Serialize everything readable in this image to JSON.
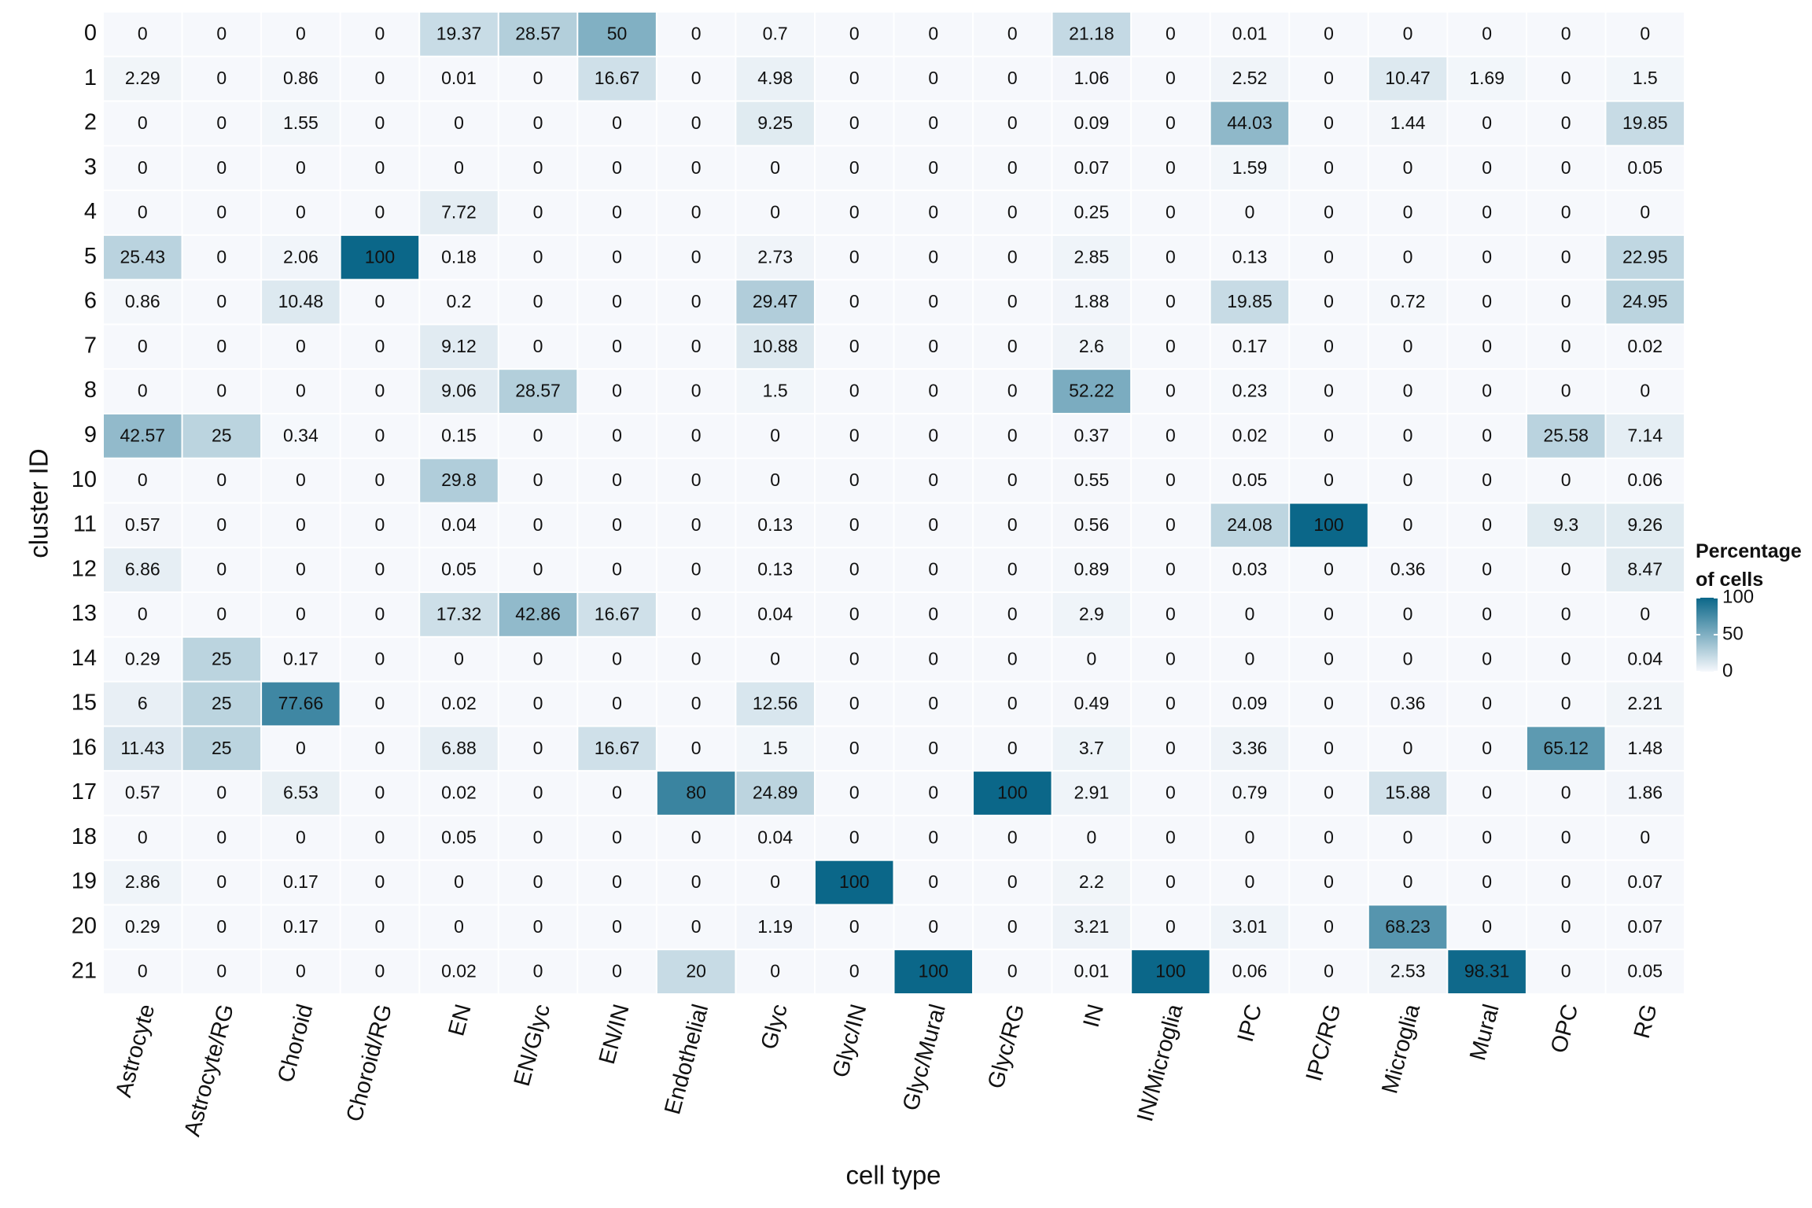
{
  "chart_data": {
    "type": "heatmap",
    "x_label": "cell type",
    "y_label": "cluster ID",
    "legend_title": "Percentage of cells",
    "x_categories": [
      "Astrocyte",
      "Astrocyte/RG",
      "Choroid",
      "Choroid/RG",
      "EN",
      "EN/Glyc",
      "EN/IN",
      "Endothelial",
      "Glyc",
      "Glyc/IN",
      "Glyc/Mural",
      "Glyc/RG",
      "IN",
      "IN/Microglia",
      "IPC",
      "IPC/RG",
      "Microglia",
      "Mural",
      "OPC",
      "RG"
    ],
    "y_categories": [
      "0",
      "1",
      "2",
      "3",
      "4",
      "5",
      "6",
      "7",
      "8",
      "9",
      "10",
      "11",
      "12",
      "13",
      "14",
      "15",
      "16",
      "17",
      "18",
      "19",
      "20",
      "21"
    ],
    "values": [
      [
        0,
        0,
        0,
        0,
        19.37,
        28.57,
        50,
        0,
        0.7,
        0,
        0,
        0,
        21.18,
        0,
        0.01,
        0,
        0,
        0,
        0,
        0
      ],
      [
        2.29,
        0,
        0.86,
        0,
        0.01,
        0,
        16.67,
        0,
        4.98,
        0,
        0,
        0,
        1.06,
        0,
        2.52,
        0,
        10.47,
        1.69,
        0,
        1.5
      ],
      [
        0,
        0,
        1.55,
        0,
        0,
        0,
        0,
        0,
        9.25,
        0,
        0,
        0,
        0.09,
        0,
        44.03,
        0,
        1.44,
        0,
        0,
        19.85
      ],
      [
        0,
        0,
        0,
        0,
        0,
        0,
        0,
        0,
        0,
        0,
        0,
        0,
        0.07,
        0,
        1.59,
        0,
        0,
        0,
        0,
        0.05
      ],
      [
        0,
        0,
        0,
        0,
        7.72,
        0,
        0,
        0,
        0,
        0,
        0,
        0,
        0.25,
        0,
        0,
        0,
        0,
        0,
        0,
        0
      ],
      [
        25.43,
        0,
        2.06,
        100,
        0.18,
        0,
        0,
        0,
        2.73,
        0,
        0,
        0,
        2.85,
        0,
        0.13,
        0,
        0,
        0,
        0,
        22.95
      ],
      [
        0.86,
        0,
        10.48,
        0,
        0.2,
        0,
        0,
        0,
        29.47,
        0,
        0,
        0,
        1.88,
        0,
        19.85,
        0,
        0.72,
        0,
        0,
        24.95
      ],
      [
        0,
        0,
        0,
        0,
        9.12,
        0,
        0,
        0,
        10.88,
        0,
        0,
        0,
        2.6,
        0,
        0.17,
        0,
        0,
        0,
        0,
        0.02
      ],
      [
        0,
        0,
        0,
        0,
        9.06,
        28.57,
        0,
        0,
        1.5,
        0,
        0,
        0,
        52.22,
        0,
        0.23,
        0,
        0,
        0,
        0,
        0
      ],
      [
        42.57,
        25,
        0.34,
        0,
        0.15,
        0,
        0,
        0,
        0,
        0,
        0,
        0,
        0.37,
        0,
        0.02,
        0,
        0,
        0,
        25.58,
        7.14
      ],
      [
        0,
        0,
        0,
        0,
        29.8,
        0,
        0,
        0,
        0,
        0,
        0,
        0,
        0.55,
        0,
        0.05,
        0,
        0,
        0,
        0,
        0.06
      ],
      [
        0.57,
        0,
        0,
        0,
        0.04,
        0,
        0,
        0,
        0.13,
        0,
        0,
        0,
        0.56,
        0,
        24.08,
        100,
        0,
        0,
        9.3,
        9.26
      ],
      [
        6.86,
        0,
        0,
        0,
        0.05,
        0,
        0,
        0,
        0.13,
        0,
        0,
        0,
        0.89,
        0,
        0.03,
        0,
        0.36,
        0,
        0,
        8.47
      ],
      [
        0,
        0,
        0,
        0,
        17.32,
        42.86,
        16.67,
        0,
        0.04,
        0,
        0,
        0,
        2.9,
        0,
        0,
        0,
        0,
        0,
        0,
        0
      ],
      [
        0.29,
        25,
        0.17,
        0,
        0,
        0,
        0,
        0,
        0,
        0,
        0,
        0,
        0,
        0,
        0,
        0,
        0,
        0,
        0,
        0.04
      ],
      [
        6,
        25,
        77.66,
        0,
        0.02,
        0,
        0,
        0,
        12.56,
        0,
        0,
        0,
        0.49,
        0,
        0.09,
        0,
        0.36,
        0,
        0,
        2.21
      ],
      [
        11.43,
        25,
        0,
        0,
        6.88,
        0,
        16.67,
        0,
        1.5,
        0,
        0,
        0,
        3.7,
        0,
        3.36,
        0,
        0,
        0,
        65.12,
        1.48
      ],
      [
        0.57,
        0,
        6.53,
        0,
        0.02,
        0,
        0,
        80,
        24.89,
        0,
        0,
        100,
        2.91,
        0,
        0.79,
        0,
        15.88,
        0,
        0,
        1.86
      ],
      [
        0,
        0,
        0,
        0,
        0.05,
        0,
        0,
        0,
        0.04,
        0,
        0,
        0,
        0,
        0,
        0,
        0,
        0,
        0,
        0,
        0
      ],
      [
        2.86,
        0,
        0.17,
        0,
        0,
        0,
        0,
        0,
        0,
        100,
        0,
        0,
        2.2,
        0,
        0,
        0,
        0,
        0,
        0,
        0.07
      ],
      [
        0.29,
        0,
        0.17,
        0,
        0,
        0,
        0,
        0,
        1.19,
        0,
        0,
        0,
        3.21,
        0,
        3.01,
        0,
        68.23,
        0,
        0,
        0.07
      ],
      [
        0,
        0,
        0,
        0,
        0.02,
        0,
        0,
        20,
        0,
        0,
        100,
        0,
        0.01,
        100,
        0.06,
        0,
        2.53,
        98.31,
        0,
        0.05
      ]
    ],
    "clim": [
      0,
      100
    ],
    "cticks": [
      0,
      50,
      100
    ],
    "color_low": "#f6f8fc",
    "color_high": "#0b6789"
  }
}
